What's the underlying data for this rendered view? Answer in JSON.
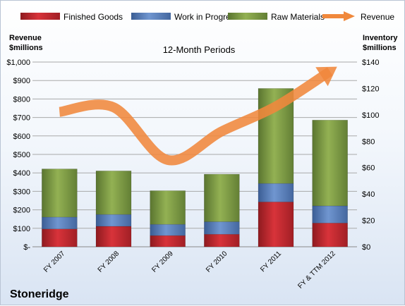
{
  "chart_data": {
    "type": "bar",
    "subtitle": "12-Month Periods",
    "company": "Stoneridge",
    "categories": [
      "FY 2007",
      "FY 2008",
      "FY 2009",
      "FY 2010",
      "FY 2011",
      "FY & TTM 2012"
    ],
    "left_axis": {
      "label_line1": "Revenue",
      "label_line2": "$millions",
      "ticks": [
        "$-",
        "$100",
        "$200",
        "$300",
        "$400",
        "$500",
        "$600",
        "$700",
        "$800",
        "$900",
        "$1,000"
      ],
      "ylim": [
        0,
        1000
      ]
    },
    "right_axis": {
      "label_line1": "Inventory",
      "label_line2": "$millions",
      "ticks": [
        "$0",
        "$20",
        "$40",
        "$60",
        "$80",
        "$100",
        "$120",
        "$140"
      ],
      "ylim": [
        0,
        140
      ]
    },
    "stacked_series": [
      {
        "name": "Finished Goods",
        "color": "#c0272d",
        "values": [
          13.5,
          15.5,
          8.5,
          9.5,
          34,
          18
        ]
      },
      {
        "name": "Work in Progress",
        "color": "#4f76b6",
        "values": [
          9,
          9,
          8.5,
          9.5,
          14,
          13
        ]
      },
      {
        "name": "Raw Materials",
        "color": "#77933c",
        "values": [
          36.5,
          33,
          25.5,
          36,
          72,
          65
        ]
      }
    ],
    "line_series": {
      "name": "Revenue",
      "color": "#f0883c",
      "values": [
        730,
        755,
        470,
        625,
        760,
        950
      ]
    },
    "legend_position": "top",
    "grid": true
  }
}
